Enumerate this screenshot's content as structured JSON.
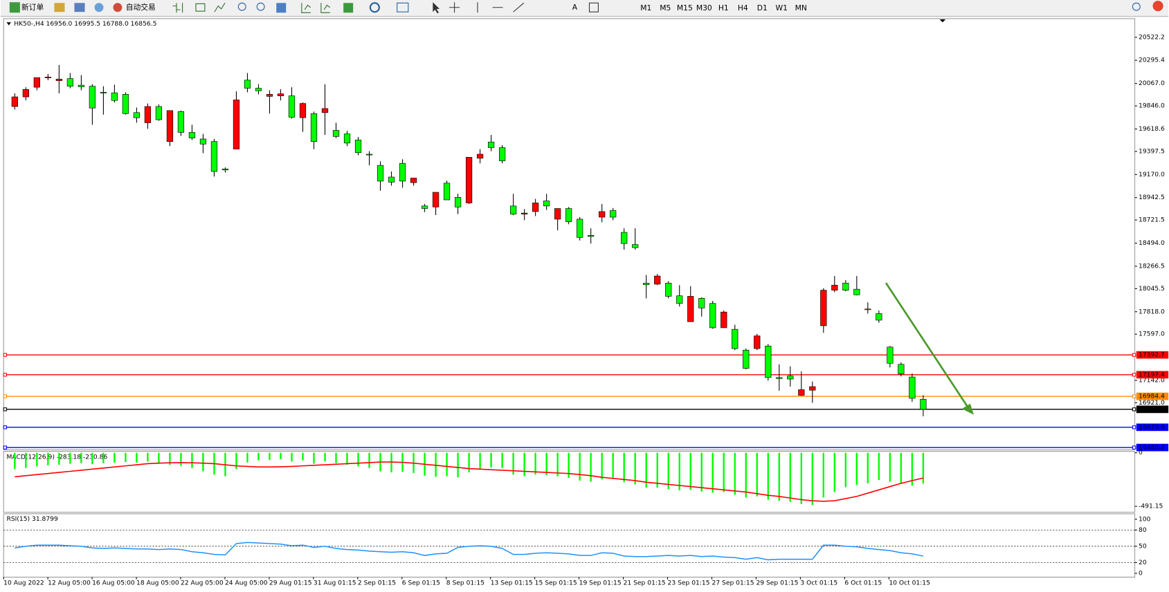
{
  "toolbar": {
    "new_order": "新订单",
    "auto_trading": "自动交易",
    "timeframes": [
      "M1",
      "M5",
      "M15",
      "M30",
      "H1",
      "H4",
      "D1",
      "W1",
      "MN"
    ]
  },
  "chart_data": [
    {
      "type": "candlestick",
      "title": "HK50-,H4  16956.0 16995.5 16788.0 16856.5",
      "bull_color": "#ff0000",
      "bear_color": "#00ff00",
      "ylim": [
        16458,
        20706
      ],
      "yticks": [
        20522.2,
        20295.4,
        {
          "value": 20067,
          "label": "20067.0"
        },
        {
          "value": 19846,
          "label": "19846.0"
        },
        19618.6,
        19397.5,
        {
          "value": 19170,
          "label": "19170.0"
        },
        18942.5,
        18721.5,
        {
          "value": 18494,
          "label": "18494.0"
        },
        18266.5,
        18045.5,
        {
          "value": 17818,
          "label": "17818.0"
        },
        {
          "value": 17597,
          "label": "17597.0"
        },
        {
          "value": 17142,
          "label": "17142.0"
        },
        {
          "value": 16921,
          "label": "16921.0"
        }
      ],
      "levels": [
        {
          "value": 17392.7,
          "color": "#ff0000"
        },
        {
          "value": 17197.4,
          "color": "#ff0000"
        },
        {
          "value": 16984.4,
          "color": "#ff8c00"
        },
        {
          "value": 16856.5,
          "color": "#000000"
        },
        {
          "value": 16679.6,
          "color": "#0000ff"
        },
        {
          "value": 16480.2,
          "color": "#0000ff"
        }
      ],
      "time_labels": [
        "10 Aug 2022",
        "12 Aug 05:00",
        "16 Aug 05:00",
        "18 Aug 05:00",
        "22 Aug 05:00",
        "24 Aug 05:00",
        "29 Aug 01:15",
        "31 Aug 01:15",
        "2 Sep 01:15",
        "6 Sep 01:15",
        "8 Sep 01:15",
        "13 Sep 01:15",
        "15 Sep 01:15",
        "19 Sep 01:15",
        "21 Sep 01:15",
        "23 Sep 01:15",
        "27 Sep 01:15",
        "29 Sep 01:15",
        "3 Oct 01:15",
        "6 Oct 01:15",
        "10 Oct 01:15"
      ],
      "candles": [
        [
          19840,
          19970,
          19810,
          19935
        ],
        [
          19935,
          20030,
          19900,
          20008
        ],
        [
          20030,
          20110,
          20000,
          20125
        ],
        [
          20125,
          20160,
          20100,
          20130
        ],
        [
          20095,
          20250,
          19970,
          20110
        ],
        [
          20115,
          20170,
          20020,
          20040
        ],
        [
          20050,
          20150,
          20000,
          20035
        ],
        [
          20040,
          20060,
          19660,
          19825
        ],
        [
          19980,
          20040,
          19760,
          19975
        ],
        [
          19975,
          20055,
          19880,
          19900
        ],
        [
          19960,
          19980,
          19760,
          19770
        ],
        [
          19780,
          19830,
          19680,
          19730
        ],
        [
          19680,
          19870,
          19620,
          19840
        ],
        [
          19840,
          19860,
          19700,
          19710
        ],
        [
          19495,
          19800,
          19450,
          19800
        ],
        [
          19790,
          19800,
          19550,
          19585
        ],
        [
          19585,
          19660,
          19510,
          19530
        ],
        [
          19520,
          19570,
          19380,
          19470
        ],
        [
          19495,
          19520,
          19150,
          19200
        ],
        [
          19225,
          19240,
          19190,
          19215
        ],
        [
          19421,
          19990,
          19420,
          19905
        ],
        [
          20100,
          20170,
          19980,
          20020
        ],
        [
          20020,
          20060,
          19960,
          19995
        ],
        [
          19940,
          20000,
          19770,
          19960
        ],
        [
          19945,
          20010,
          19900,
          19965
        ],
        [
          19945,
          20030,
          19720,
          19735
        ],
        [
          19730,
          19880,
          19590,
          19870
        ],
        [
          19770,
          19790,
          19420,
          19495
        ],
        [
          19780,
          20060,
          19560,
          19820
        ],
        [
          19605,
          19680,
          19530,
          19545
        ],
        [
          19570,
          19600,
          19450,
          19480
        ],
        [
          19510,
          19540,
          19360,
          19385
        ],
        [
          19370,
          19400,
          19260,
          19365
        ],
        [
          19260,
          19300,
          19010,
          19105
        ],
        [
          19145,
          19200,
          19060,
          19095
        ],
        [
          19280,
          19320,
          19040,
          19105
        ],
        [
          19090,
          19130,
          19060,
          19135
        ],
        [
          18860,
          18880,
          18800,
          18835
        ],
        [
          18850,
          18990,
          18770,
          18995
        ],
        [
          19085,
          19110,
          18920,
          18920
        ],
        [
          18945,
          18980,
          18780,
          18850
        ],
        [
          18890,
          19340,
          18880,
          19340
        ],
        [
          19330,
          19420,
          19280,
          19370
        ],
        [
          19490,
          19560,
          19400,
          19435
        ],
        [
          19435,
          19460,
          19280,
          19305
        ],
        [
          18860,
          18980,
          18770,
          18780
        ],
        [
          18780,
          18830,
          18720,
          18790
        ],
        [
          18805,
          18930,
          18760,
          18890
        ],
        [
          18910,
          18980,
          18820,
          18860
        ],
        [
          18730,
          18830,
          18620,
          18835
        ],
        [
          18835,
          18850,
          18680,
          18705
        ],
        [
          18730,
          18750,
          18520,
          18550
        ],
        [
          18570,
          18640,
          18490,
          18560
        ],
        [
          18750,
          18880,
          18700,
          18805
        ],
        [
          18815,
          18840,
          18720,
          18750
        ],
        [
          18600,
          18640,
          18430,
          18490
        ],
        [
          18480,
          18640,
          18430,
          18450
        ],
        [
          18100,
          18180,
          17950,
          18085
        ],
        [
          18090,
          18190,
          18080,
          18170
        ],
        [
          18100,
          18120,
          17950,
          17970
        ],
        [
          17975,
          18080,
          17870,
          17900
        ],
        [
          17720,
          18070,
          17720,
          17970
        ],
        [
          17950,
          17960,
          17770,
          17855
        ],
        [
          17900,
          17925,
          17650,
          17660
        ],
        [
          17660,
          17830,
          17660,
          17815
        ],
        [
          17645,
          17690,
          17440,
          17455
        ],
        [
          17440,
          17455,
          17250,
          17260
        ],
        [
          17455,
          17600,
          17440,
          17580
        ],
        [
          17480,
          17500,
          17140,
          17170
        ],
        [
          17170,
          17300,
          17040,
          17160
        ],
        [
          17185,
          17280,
          17080,
          17155
        ],
        [
          16995,
          17230,
          16990,
          17050
        ],
        [
          17045,
          17130,
          16920,
          17080
        ],
        [
          17680,
          18050,
          17610,
          18030
        ],
        [
          18030,
          18170,
          18010,
          18080
        ],
        [
          18100,
          18130,
          18020,
          18030
        ],
        [
          18040,
          18170,
          17980,
          17985
        ],
        [
          17845,
          17910,
          17800,
          17840
        ],
        [
          17800,
          17830,
          17710,
          17735
        ],
        [
          17470,
          17480,
          17270,
          17310
        ],
        [
          17300,
          17320,
          17180,
          17205
        ],
        [
          17175,
          17210,
          16930,
          16965
        ],
        [
          16956.0,
          16995.5,
          16788.0,
          16856.5
        ]
      ]
    },
    {
      "type": "macd",
      "title": "MACD(12,26,9) -283.18 -230.86",
      "hist_color": "#00ff00",
      "signal_color": "#ff0000",
      "ylim": [
        -546,
        14
      ],
      "yticks": [
        0,
        -491.15
      ],
      "hist": [
        -150,
        -140,
        -125,
        -115,
        -110,
        -100,
        -95,
        -105,
        -95,
        -90,
        -85,
        -90,
        -80,
        -95,
        -110,
        -120,
        -140,
        -170,
        -200,
        -215,
        -150,
        -90,
        -70,
        -65,
        -60,
        -80,
        -70,
        -100,
        -80,
        -95,
        -110,
        -125,
        -140,
        -170,
        -180,
        -175,
        -185,
        -210,
        -220,
        -215,
        -225,
        -180,
        -150,
        -135,
        -140,
        -200,
        -215,
        -200,
        -205,
        -215,
        -230,
        -255,
        -265,
        -245,
        -240,
        -270,
        -290,
        -320,
        -320,
        -335,
        -345,
        -340,
        -355,
        -365,
        -360,
        -385,
        -410,
        -400,
        -430,
        -440,
        -450,
        -470,
        -480,
        -410,
        -360,
        -315,
        -295,
        -280,
        -250,
        -265,
        -280,
        -300,
        -283.18
      ],
      "signal": [
        -220,
        -210,
        -200,
        -190,
        -180,
        -170,
        -160,
        -150,
        -140,
        -130,
        -120,
        -110,
        -100,
        -95,
        -92,
        -90,
        -92,
        -95,
        -100,
        -110,
        -120,
        -125,
        -130,
        -130,
        -128,
        -125,
        -120,
        -115,
        -110,
        -105,
        -100,
        -95,
        -90,
        -85,
        -85,
        -88,
        -95,
        -105,
        -115,
        -125,
        -135,
        -145,
        -150,
        -155,
        -160,
        -165,
        -170,
        -175,
        -180,
        -185,
        -190,
        -200,
        -210,
        -225,
        -235,
        -245,
        -255,
        -270,
        -280,
        -290,
        -300,
        -310,
        -320,
        -330,
        -340,
        -350,
        -360,
        -375,
        -390,
        -400,
        -415,
        -430,
        -440,
        -445,
        -440,
        -420,
        -400,
        -370,
        -340,
        -310,
        -280,
        -255,
        -230.86
      ]
    },
    {
      "type": "rsi",
      "title": "RSI(15) 31.8799",
      "color": "#1e90ff",
      "ylim": [
        -7,
        110
      ],
      "yticks": [
        100,
        80,
        50,
        20,
        0
      ],
      "levels": [
        80,
        50,
        20
      ],
      "values": [
        47,
        50,
        52,
        52,
        52,
        51,
        50,
        47,
        46,
        47,
        46,
        45,
        45,
        44,
        45,
        44,
        40,
        38,
        35,
        34,
        55,
        57,
        56,
        55,
        54,
        51,
        52,
        48,
        50,
        46,
        44,
        43,
        41,
        40,
        39,
        40,
        38,
        33,
        36,
        37,
        48,
        50,
        51,
        50,
        46,
        35,
        35,
        37,
        38,
        37,
        36,
        33,
        33,
        38,
        37,
        32,
        31,
        31,
        32,
        33,
        32,
        33,
        31,
        32,
        30,
        29,
        26,
        29,
        25,
        26,
        26,
        26,
        26,
        52,
        52,
        50,
        49,
        46,
        44,
        42,
        38,
        36,
        31.8799
      ]
    }
  ]
}
